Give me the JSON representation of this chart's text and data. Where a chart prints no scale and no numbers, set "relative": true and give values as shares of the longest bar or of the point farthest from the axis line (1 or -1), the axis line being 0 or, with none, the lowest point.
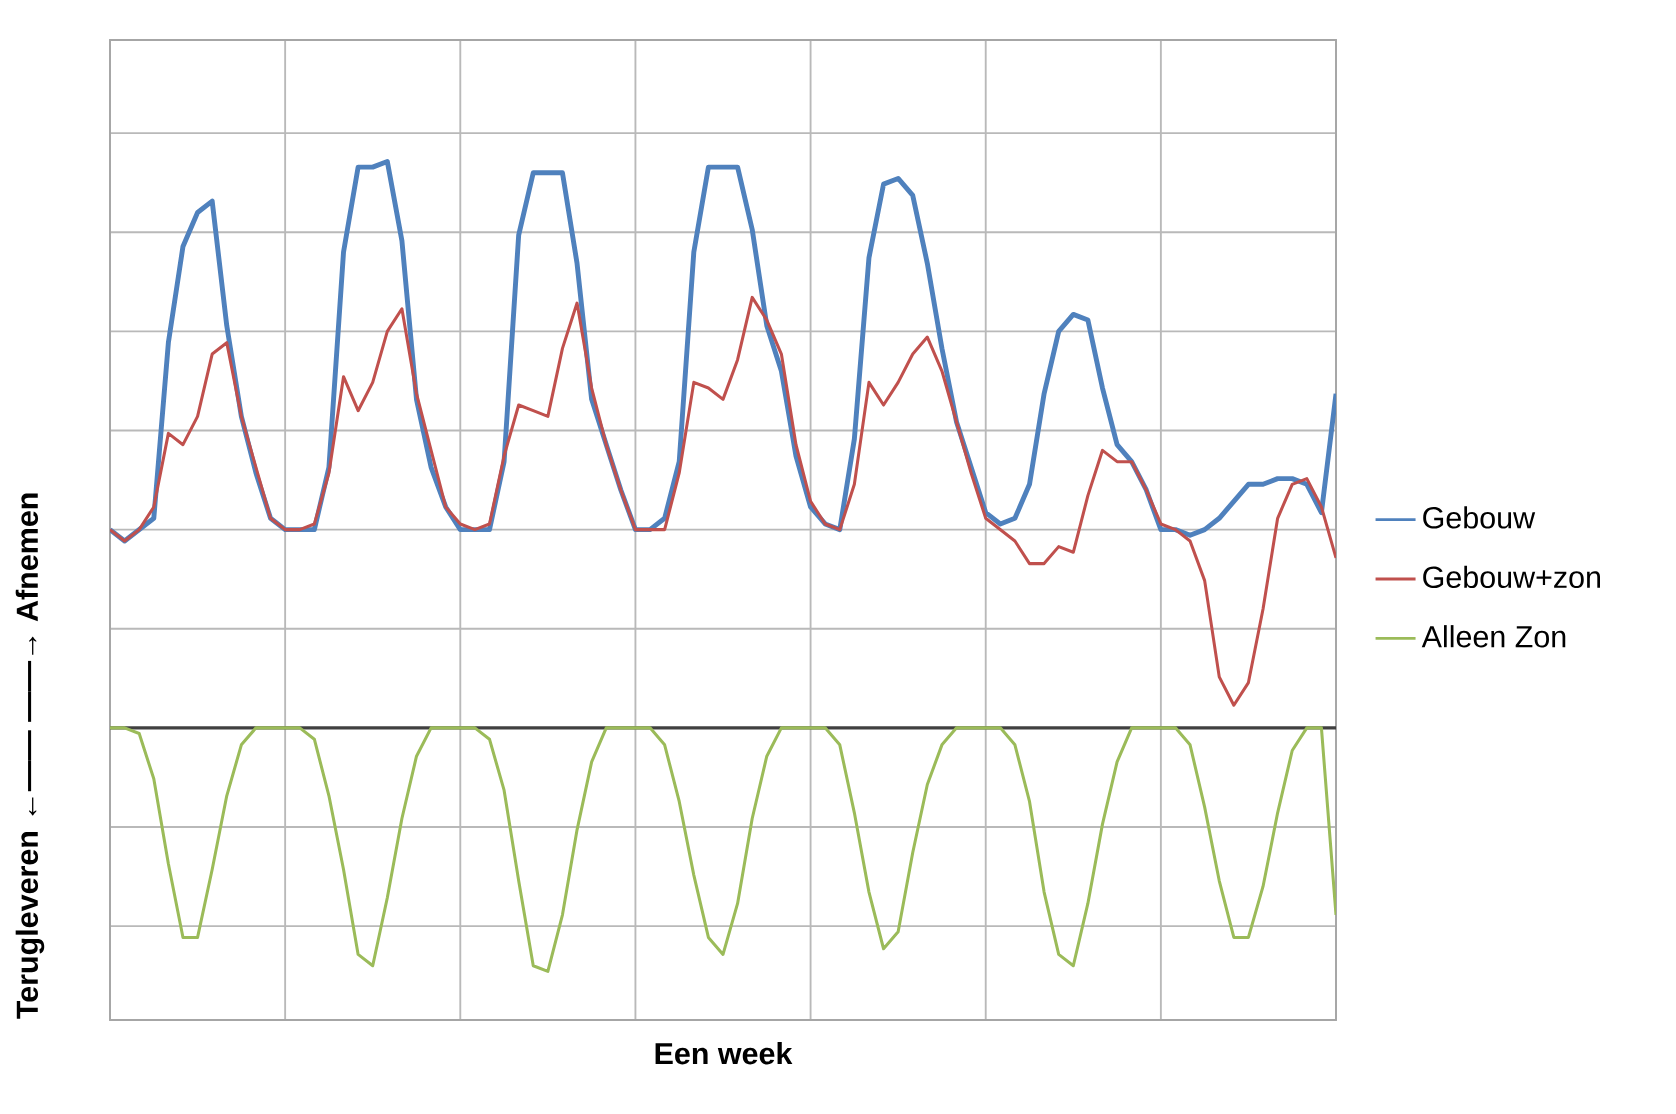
{
  "chart_data": {
    "type": "line",
    "xlabel": "**Een week**",
    "ylabel": "**Terugleveren ←——    ——→ Afnemen**",
    "relative": true,
    "categories": [
      null,
      null,
      null,
      null,
      null,
      null,
      null,
      null,
      null,
      null,
      null,
      null,
      null,
      null,
      null,
      null,
      null,
      null,
      null,
      null,
      null,
      null,
      null,
      null,
      null,
      null,
      null,
      null,
      null,
      null,
      null,
      null,
      null,
      null,
      null,
      null,
      null,
      null,
      null,
      null,
      null,
      null,
      null,
      null,
      null,
      null,
      null,
      null,
      null,
      null,
      null,
      null,
      null,
      null,
      null,
      null,
      null,
      null,
      null,
      null,
      null,
      null,
      null,
      null,
      null,
      null,
      null,
      null,
      null,
      null,
      null,
      null,
      null,
      null,
      null,
      null,
      null,
      null,
      null,
      null,
      null,
      null,
      null,
      null,
      null
    ],
    "grid": true,
    "legend": "right",
    "tick_labels": false,
    "series": [
      {
        "name": "Gebouw",
        "color": "#4f81bd",
        "values": [
          0.35,
          0.33,
          0.35,
          0.37,
          0.68,
          0.85,
          0.91,
          0.93,
          0.71,
          0.55,
          0.45,
          0.37,
          0.35,
          0.35,
          0.35,
          0.46,
          0.84,
          0.99,
          0.99,
          1.0,
          0.86,
          0.58,
          0.46,
          0.39,
          0.35,
          0.35,
          0.35,
          0.47,
          0.87,
          0.98,
          0.98,
          0.98,
          0.82,
          0.58,
          0.5,
          0.42,
          0.35,
          0.35,
          0.37,
          0.47,
          0.84,
          0.99,
          0.99,
          0.99,
          0.88,
          0.71,
          0.63,
          0.48,
          0.39,
          0.36,
          0.35,
          0.51,
          0.83,
          0.96,
          0.97,
          0.94,
          0.82,
          0.67,
          0.54,
          0.46,
          0.38,
          0.36,
          0.37,
          0.43,
          0.59,
          0.7,
          0.73,
          0.72,
          0.6,
          0.5,
          0.47,
          0.42,
          0.35,
          0.35,
          0.34,
          0.35,
          0.37,
          0.4,
          0.43,
          0.43,
          0.44,
          0.44,
          0.43,
          0.38,
          0.59
        ]
      },
      {
        "name": "Gebouw+zon",
        "color": "#c0504d",
        "values": [
          0.35,
          0.33,
          0.35,
          0.39,
          0.52,
          0.5,
          0.55,
          0.66,
          0.68,
          0.55,
          0.46,
          0.37,
          0.35,
          0.35,
          0.36,
          0.45,
          0.62,
          0.56,
          0.61,
          0.7,
          0.74,
          0.59,
          0.49,
          0.39,
          0.36,
          0.35,
          0.36,
          0.48,
          0.57,
          0.56,
          0.55,
          0.67,
          0.75,
          0.6,
          0.5,
          0.42,
          0.35,
          0.35,
          0.35,
          0.45,
          0.61,
          0.6,
          0.58,
          0.65,
          0.76,
          0.72,
          0.66,
          0.5,
          0.4,
          0.36,
          0.35,
          0.43,
          0.61,
          0.57,
          0.61,
          0.66,
          0.69,
          0.63,
          0.54,
          0.45,
          0.37,
          0.35,
          0.33,
          0.29,
          0.29,
          0.32,
          0.31,
          0.41,
          0.49,
          0.47,
          0.47,
          0.42,
          0.36,
          0.35,
          0.33,
          0.26,
          0.09,
          0.04,
          0.08,
          0.21,
          0.37,
          0.43,
          0.44,
          0.39,
          0.3
        ]
      },
      {
        "name": "Alleen Zon",
        "color": "#9bbb59",
        "values": [
          0,
          0,
          -0.01,
          -0.09,
          -0.24,
          -0.37,
          -0.37,
          -0.25,
          -0.12,
          -0.03,
          0,
          0,
          0,
          0,
          -0.02,
          -0.12,
          -0.25,
          -0.4,
          -0.42,
          -0.3,
          -0.16,
          -0.05,
          0,
          0,
          0,
          0,
          -0.02,
          -0.11,
          -0.27,
          -0.42,
          -0.43,
          -0.33,
          -0.18,
          -0.06,
          0,
          0,
          0,
          0,
          -0.03,
          -0.13,
          -0.26,
          -0.37,
          -0.4,
          -0.31,
          -0.16,
          -0.05,
          0,
          0,
          0,
          0,
          -0.03,
          -0.15,
          -0.29,
          -0.39,
          -0.36,
          -0.22,
          -0.1,
          -0.03,
          0,
          0,
          0,
          0,
          -0.03,
          -0.13,
          -0.29,
          -0.4,
          -0.42,
          -0.31,
          -0.17,
          -0.06,
          0,
          0,
          0,
          0,
          -0.03,
          -0.14,
          -0.27,
          -0.37,
          -0.37,
          -0.28,
          -0.15,
          -0.04,
          0,
          0,
          -0.33
        ]
      }
    ]
  }
}
